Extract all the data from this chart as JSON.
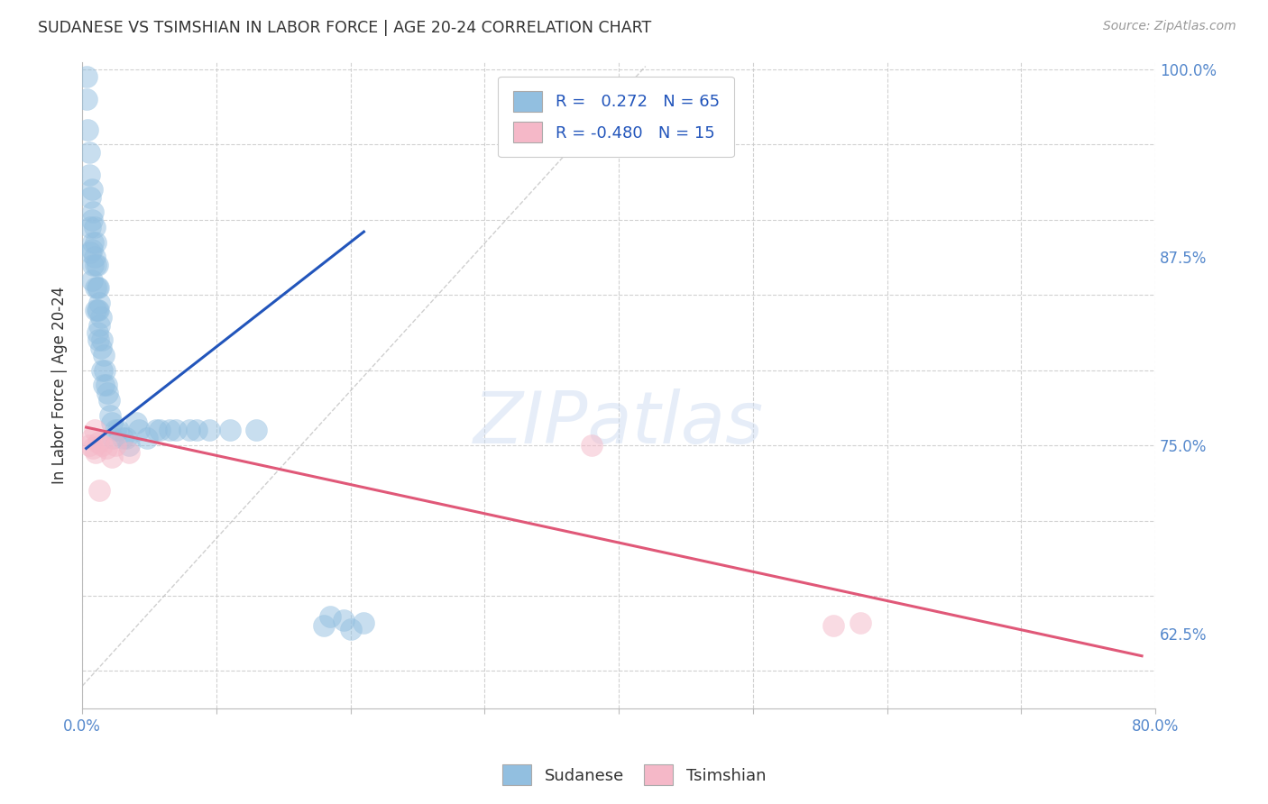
{
  "title": "SUDANESE VS TSIMSHIAN IN LABOR FORCE | AGE 20-24 CORRELATION CHART",
  "source": "Source: ZipAtlas.com",
  "ylabel": "In Labor Force | Age 20-24",
  "xlim": [
    0.0,
    0.8
  ],
  "ylim": [
    0.575,
    1.005
  ],
  "xticks": [
    0.0,
    0.1,
    0.2,
    0.3,
    0.4,
    0.5,
    0.6,
    0.7,
    0.8
  ],
  "xticklabels": [
    "0.0%",
    "",
    "",
    "",
    "",
    "",
    "",
    "",
    "80.0%"
  ],
  "yticks": [
    0.625,
    0.75,
    0.875,
    1.0
  ],
  "yticklabels": [
    "62.5%",
    "75.0%",
    "87.5%",
    "100.0%"
  ],
  "blue_color": "#92bfe0",
  "pink_color": "#f5b8c8",
  "blue_line_color": "#2255bb",
  "pink_line_color": "#e05878",
  "ref_line_color": "#bbbbbb",
  "watermark_color": "#c8d8f0",
  "background_color": "#ffffff",
  "grid_color": "#cccccc",
  "title_color": "#333333",
  "tick_color": "#5588cc",
  "sudanese_x": [
    0.003,
    0.003,
    0.004,
    0.005,
    0.005,
    0.006,
    0.006,
    0.006,
    0.007,
    0.007,
    0.007,
    0.007,
    0.008,
    0.008,
    0.008,
    0.009,
    0.009,
    0.01,
    0.01,
    0.01,
    0.01,
    0.011,
    0.011,
    0.011,
    0.011,
    0.012,
    0.012,
    0.012,
    0.013,
    0.013,
    0.014,
    0.014,
    0.015,
    0.015,
    0.016,
    0.016,
    0.017,
    0.018,
    0.019,
    0.02,
    0.021,
    0.022,
    0.023,
    0.025,
    0.027,
    0.03,
    0.033,
    0.035,
    0.04,
    0.042,
    0.048,
    0.055,
    0.058,
    0.065,
    0.07,
    0.08,
    0.085,
    0.095,
    0.11,
    0.13,
    0.18,
    0.21,
    0.2,
    0.195,
    0.185
  ],
  "sudanese_y": [
    0.98,
    0.995,
    0.96,
    0.945,
    0.93,
    0.915,
    0.895,
    0.878,
    0.92,
    0.9,
    0.88,
    0.86,
    0.905,
    0.885,
    0.87,
    0.895,
    0.875,
    0.885,
    0.87,
    0.855,
    0.84,
    0.87,
    0.855,
    0.84,
    0.825,
    0.855,
    0.84,
    0.82,
    0.845,
    0.83,
    0.835,
    0.815,
    0.82,
    0.8,
    0.81,
    0.79,
    0.8,
    0.79,
    0.785,
    0.78,
    0.77,
    0.765,
    0.755,
    0.76,
    0.76,
    0.755,
    0.755,
    0.75,
    0.765,
    0.76,
    0.755,
    0.76,
    0.76,
    0.76,
    0.76,
    0.76,
    0.76,
    0.76,
    0.76,
    0.76,
    0.63,
    0.632,
    0.628,
    0.634,
    0.636
  ],
  "tsimshian_x": [
    0.005,
    0.007,
    0.008,
    0.009,
    0.01,
    0.012,
    0.013,
    0.015,
    0.018,
    0.022,
    0.025,
    0.035,
    0.38,
    0.56,
    0.58
  ],
  "tsimshian_y": [
    0.75,
    0.755,
    0.748,
    0.76,
    0.745,
    0.752,
    0.72,
    0.75,
    0.748,
    0.742,
    0.75,
    0.745,
    0.75,
    0.63,
    0.632
  ],
  "blue_trend_x": [
    0.003,
    0.21
  ],
  "blue_trend_y": [
    0.748,
    0.892
  ],
  "pink_trend_x": [
    0.003,
    0.79
  ],
  "pink_trend_y": [
    0.762,
    0.61
  ],
  "ref_line_x": [
    0.0,
    0.42
  ],
  "ref_line_y": [
    0.59,
    1.002
  ]
}
